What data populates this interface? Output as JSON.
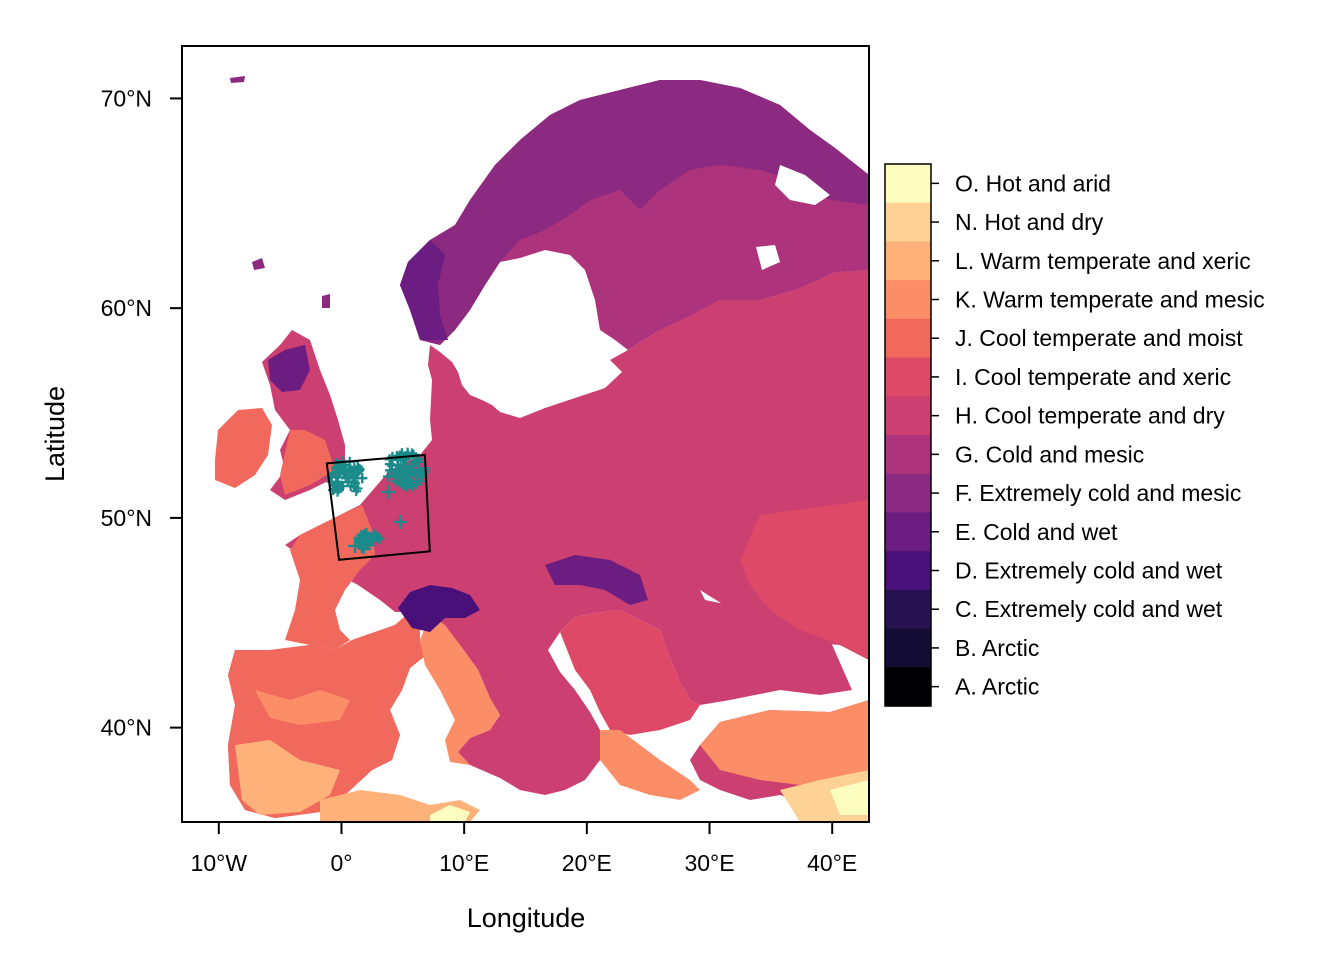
{
  "map": {
    "x_axis_title": "Longitude",
    "y_axis_title": "Latitude",
    "lon_range": [
      -13,
      43
    ],
    "lat_range": [
      35.5,
      72.5
    ],
    "x_ticks": [
      {
        "value": -10,
        "label": "10°W"
      },
      {
        "value": 0,
        "label": "0°"
      },
      {
        "value": 10,
        "label": "10°E"
      },
      {
        "value": 20,
        "label": "20°E"
      },
      {
        "value": 30,
        "label": "30°E"
      },
      {
        "value": 40,
        "label": "40°E"
      }
    ],
    "y_ticks": [
      {
        "value": 40,
        "label": "40°N"
      },
      {
        "value": 50,
        "label": "50°N"
      },
      {
        "value": 60,
        "label": "60°N"
      },
      {
        "value": 70,
        "label": "70°N"
      }
    ],
    "study_area_corners_lonlat": [
      [
        -1.2,
        52.6
      ],
      [
        6.8,
        53.0
      ],
      [
        7.2,
        48.4
      ],
      [
        -0.2,
        48.0
      ]
    ],
    "occurrence_color": "#1a8a8a",
    "outline_color": "#000000"
  },
  "legend": {
    "categories": [
      {
        "label": "O. Hot and arid",
        "color": "#fcfdbf"
      },
      {
        "label": "N. Hot and dry",
        "color": "#fdd294"
      },
      {
        "label": "L. Warm temperate and xeric",
        "color": "#feb27a"
      },
      {
        "label": "K. Warm temperate and mesic",
        "color": "#fb8d67"
      },
      {
        "label": "J. Cool temperate and moist",
        "color": "#f1695c"
      },
      {
        "label": "I. Cool temperate and xeric",
        "color": "#de4968"
      },
      {
        "label": "H. Cool temperate and dry",
        "color": "#cc3f71"
      },
      {
        "label": "G. Cold and mesic",
        "color": "#ad347c"
      },
      {
        "label": "F. Extremely cold and mesic",
        "color": "#8c2981"
      },
      {
        "label": "E. Cold and wet",
        "color": "#6b1d81"
      },
      {
        "label": "D. Extremely cold and wet",
        "color": "#4a1079"
      },
      {
        "label": "C. Extremely cold and wet",
        "color": "#26124e"
      },
      {
        "label": "B. Arctic",
        "color": "#140e36"
      },
      {
        "label": "A. Arctic",
        "color": "#000004"
      }
    ]
  }
}
